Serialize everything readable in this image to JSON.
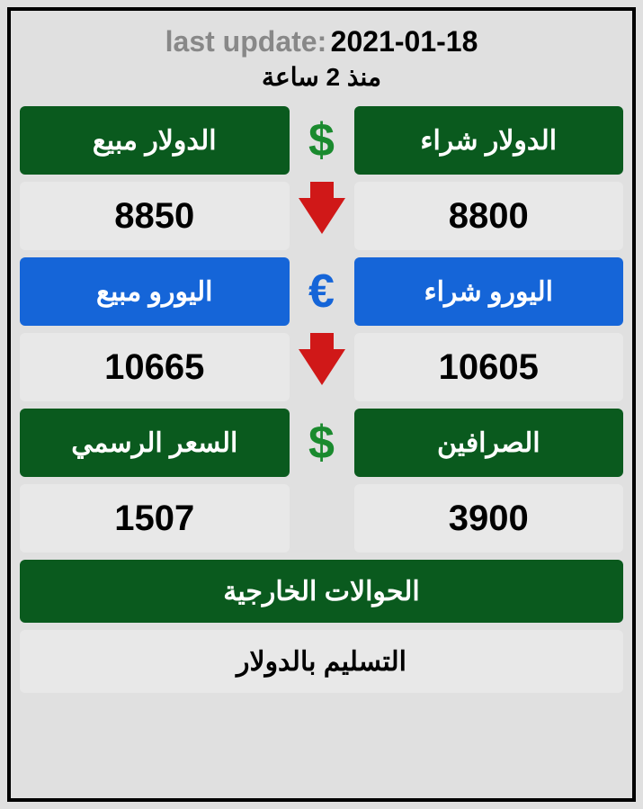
{
  "header": {
    "update_prefix": "last update:",
    "update_date": "2021-01-18",
    "time_ago": "منذ 2 ساعة"
  },
  "colors": {
    "green": "#0a5a1e",
    "blue": "#1565d8",
    "grey": "#e8e8e8",
    "red": "#d01818",
    "dollar_green": "#1a8a2e",
    "bg": "#e0e0e0"
  },
  "rows": [
    {
      "left_label": "الدولار مبيع",
      "right_label": "الدولار شراء",
      "left_value": "8850",
      "right_value": "8800",
      "header_bg": "green",
      "icon": "dollar",
      "trend": "down"
    },
    {
      "left_label": "اليورو مبيع",
      "right_label": "اليورو شراء",
      "left_value": "10665",
      "right_value": "10605",
      "header_bg": "blue",
      "icon": "euro",
      "trend": "down"
    },
    {
      "left_label": "السعر الرسمي",
      "right_label": "الصرافين",
      "left_value": "1507",
      "right_value": "3900",
      "header_bg": "green",
      "icon": "dollar",
      "trend": "none"
    }
  ],
  "footer": {
    "title": "الحوالات الخارجية",
    "subtitle": "التسليم بالدولار"
  }
}
